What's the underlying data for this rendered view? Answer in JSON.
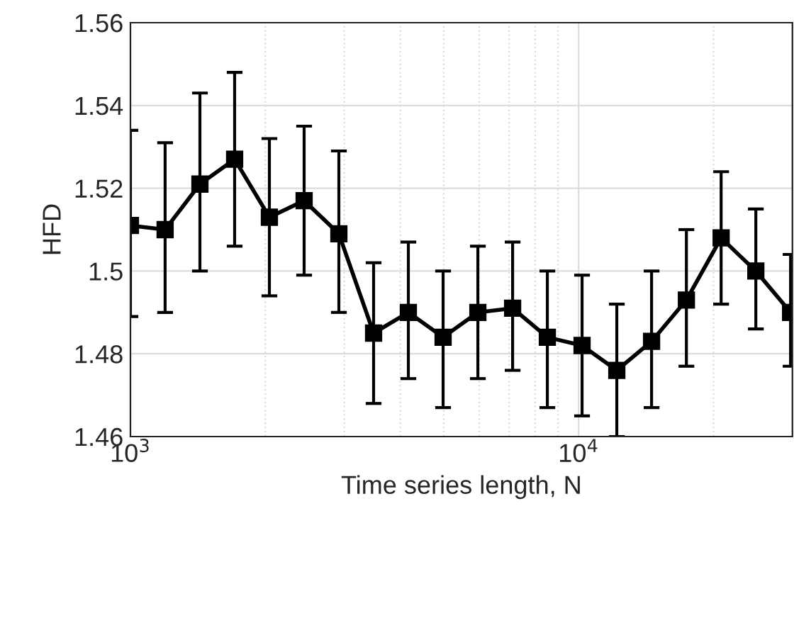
{
  "chart_data": {
    "type": "line",
    "xlabel": "Time series length, N",
    "ylabel": "HFD",
    "x": [
      1000,
      1195,
      1429,
      1708,
      2042,
      2441,
      2918,
      3488,
      4170,
      4985,
      5960,
      7125,
      8517,
      10180,
      12170,
      14550,
      17400,
      20800,
      24860,
      29720
    ],
    "series": [
      {
        "color": "#000000",
        "values": [
          1.511,
          1.51,
          1.521,
          1.527,
          1.513,
          1.517,
          1.509,
          1.485,
          1.49,
          1.484,
          1.49,
          1.491,
          1.484,
          1.482,
          1.476,
          1.483,
          1.493,
          1.508,
          1.5,
          1.49
        ],
        "errors": [
          [
            1.489,
            1.534
          ],
          [
            1.49,
            1.531
          ],
          [
            1.5,
            1.543
          ],
          [
            1.506,
            1.548
          ],
          [
            1.494,
            1.532
          ],
          [
            1.499,
            1.535
          ],
          [
            1.49,
            1.529
          ],
          [
            1.468,
            1.502
          ],
          [
            1.474,
            1.507
          ],
          [
            1.467,
            1.5
          ],
          [
            1.474,
            1.506
          ],
          [
            1.476,
            1.507
          ],
          [
            1.467,
            1.5
          ],
          [
            1.465,
            1.499
          ],
          [
            1.46,
            1.492
          ],
          [
            1.467,
            1.5
          ],
          [
            1.477,
            1.51
          ],
          [
            1.492,
            1.524
          ],
          [
            1.486,
            1.515
          ],
          [
            1.477,
            1.504
          ]
        ]
      }
    ],
    "log": "x",
    "xlim": [
      1000,
      30000
    ],
    "xticks": [
      {
        "value": 1000,
        "label": "10$^{3}$"
      },
      {
        "value": 10000,
        "label": "10$^{4}$"
      }
    ],
    "ylim": [
      1.46,
      1.56
    ],
    "yticks": [
      1.46,
      1.48,
      1.5,
      1.52,
      1.54,
      1.56
    ],
    "grid": true,
    "marker": "square",
    "line_style": "solid"
  }
}
